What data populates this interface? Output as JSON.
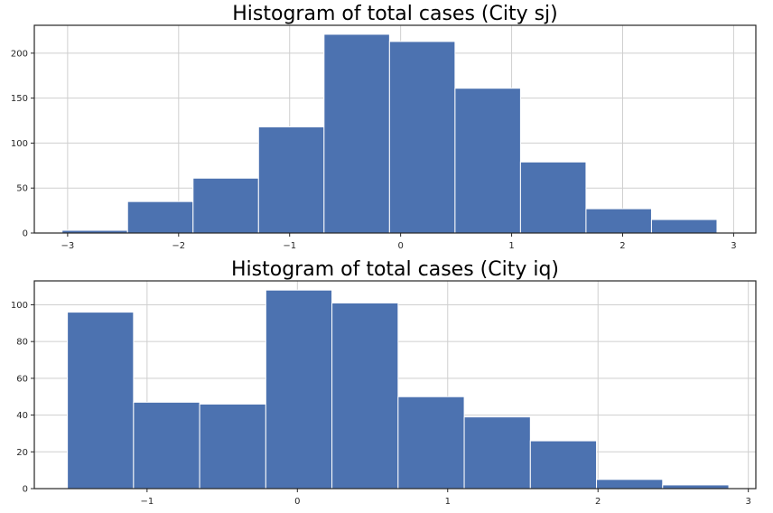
{
  "colors": {
    "bar": "#4c72b0",
    "grid": "#cfcfcf",
    "frame": "#262626"
  },
  "chart_data": [
    {
      "type": "bar",
      "subtype": "histogram",
      "title": "Histogram of total cases (City sj)",
      "xlabel": "",
      "ylabel": "",
      "xlim": [
        -3.3,
        3.2
      ],
      "ylim": [
        0,
        231
      ],
      "grid": true,
      "x_ticks": [
        -3,
        -2,
        -1,
        0,
        1,
        2,
        3
      ],
      "x_tick_labels": [
        "−3",
        "−2",
        "−1",
        "0",
        "1",
        "2",
        "3"
      ],
      "y_ticks": [
        0,
        50,
        100,
        150,
        200
      ],
      "y_tick_labels": [
        "0",
        "50",
        "100",
        "150",
        "200"
      ],
      "bin_edges": [
        -3.05,
        -2.46,
        -1.87,
        -1.28,
        -0.69,
        -0.1,
        0.49,
        1.08,
        1.67,
        2.26,
        2.85
      ],
      "values": [
        3,
        35,
        61,
        118,
        221,
        213,
        161,
        79,
        27,
        15
      ]
    },
    {
      "type": "bar",
      "subtype": "histogram",
      "title": "Histogram of total cases (City iq)",
      "xlabel": "",
      "ylabel": "",
      "xlim": [
        -1.75,
        3.05
      ],
      "ylim": [
        0,
        113
      ],
      "grid": true,
      "x_ticks": [
        -1,
        0,
        1,
        2,
        3
      ],
      "x_tick_labels": [
        "−1",
        "0",
        "1",
        "2",
        "3"
      ],
      "y_ticks": [
        0,
        20,
        40,
        60,
        80,
        100
      ],
      "y_tick_labels": [
        "0",
        "20",
        "40",
        "60",
        "80",
        "100"
      ],
      "bin_edges": [
        -1.53,
        -1.09,
        -0.65,
        -0.21,
        0.23,
        0.67,
        1.11,
        1.55,
        1.99,
        2.43,
        2.87
      ],
      "values": [
        96,
        47,
        46,
        108,
        101,
        50,
        39,
        26,
        5,
        2
      ]
    }
  ]
}
